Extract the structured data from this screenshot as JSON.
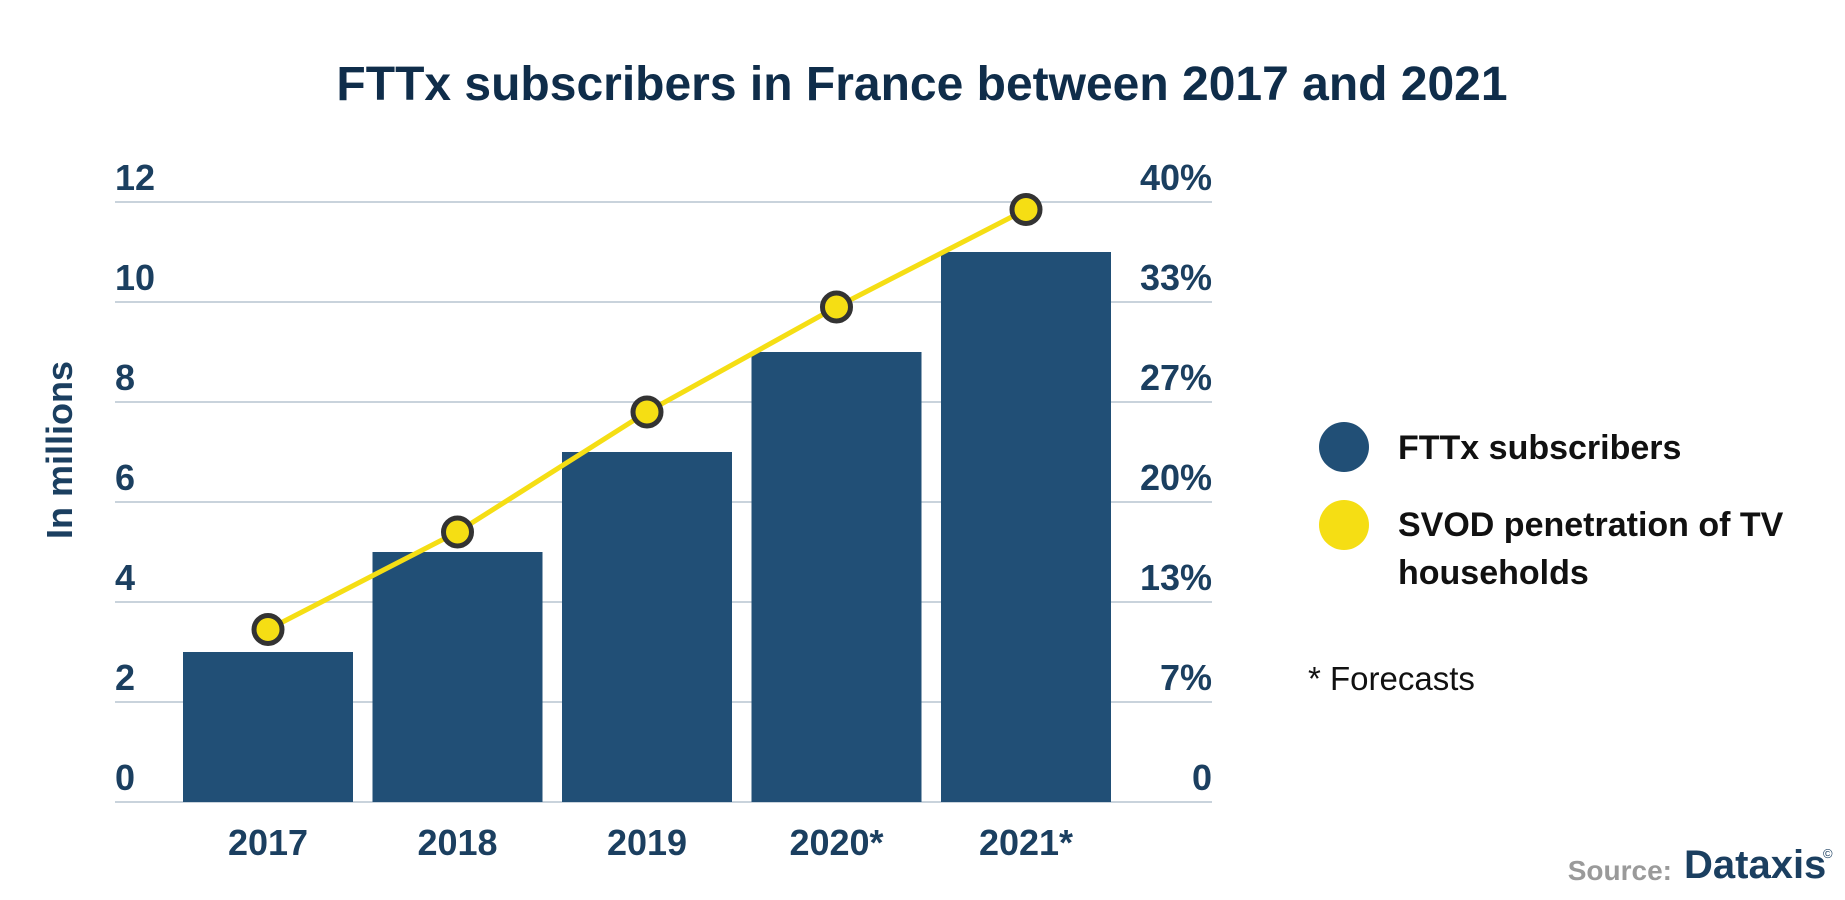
{
  "chart_data": {
    "type": "bar",
    "title": "FTTx subscribers in France between 2017 and 2021",
    "ylabel": "In millions",
    "categories": [
      "2017",
      "2018",
      "2019",
      "2020*",
      "2021*"
    ],
    "ylim": [
      0,
      12
    ],
    "y_ticks": [
      "0",
      "2",
      "4",
      "6",
      "8",
      "10",
      "12"
    ],
    "y2lim": [
      0,
      40
    ],
    "y2_ticks": [
      "0",
      "7%",
      "13%",
      "20%",
      "27%",
      "33%",
      "40%"
    ],
    "grid": true,
    "legend_position": "right",
    "series": [
      {
        "name": "FTTx subscribers",
        "type": "bar",
        "axis": "left",
        "color": "#214f76",
        "values": [
          3,
          5,
          7,
          9,
          11
        ]
      },
      {
        "name": "SVOD penetration of TV households",
        "type": "line",
        "axis": "right",
        "color": "#f5de14",
        "values": [
          11.5,
          18,
          26,
          33,
          39.5
        ]
      }
    ],
    "annotations": [
      "* Forecasts"
    ]
  },
  "legend": {
    "items": [
      {
        "label": "FTTx subscribers",
        "color": "#214f76"
      },
      {
        "label_lines": [
          "SVOD penetration of TV",
          "households"
        ],
        "color": "#f5de14"
      }
    ],
    "note": "* Forecasts"
  },
  "source": {
    "label": "Source:",
    "brand": "Dataxis",
    "copyright": "©"
  },
  "colors": {
    "bar": "#214f76",
    "line": "#f5de14",
    "marker_stroke": "#333333",
    "grid": "#c9d3dc",
    "text": "#1b3f60"
  }
}
